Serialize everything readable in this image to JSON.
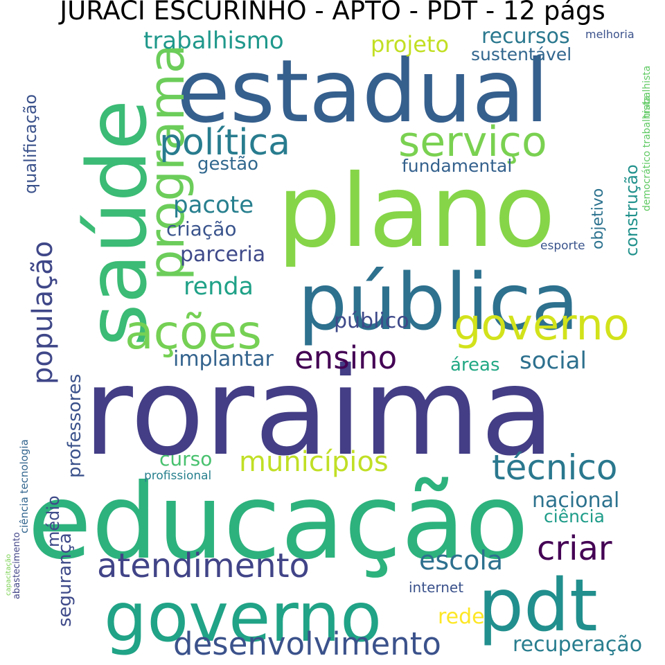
{
  "title": "JURACI ESCURINHO - APTO - PDT - 12 págs",
  "words": [
    {
      "text": "roraima",
      "color": "#433e85"
    },
    {
      "text": "educação",
      "color": "#2db27d"
    },
    {
      "text": "plano",
      "color": "#86d549"
    },
    {
      "text": "estadual",
      "color": "#355f8d"
    },
    {
      "text": "pública",
      "color": "#2d718e"
    },
    {
      "text": "saúde",
      "color": "#3bbb75"
    },
    {
      "text": "governo",
      "color": "#20a386"
    },
    {
      "text": "pdt",
      "color": "#218f8d"
    },
    {
      "text": "governo",
      "color": "#d2e21b"
    },
    {
      "text": "programa",
      "color": "#6ccd5a"
    },
    {
      "text": "ações",
      "color": "#75d054"
    },
    {
      "text": "serviço",
      "color": "#7ad151"
    },
    {
      "text": "política",
      "color": "#287c8e"
    },
    {
      "text": "atendimento",
      "color": "#414487"
    },
    {
      "text": "desenvolvimento",
      "color": "#3b528b"
    },
    {
      "text": "técnico",
      "color": "#2a788e"
    },
    {
      "text": "criar",
      "color": "#440154"
    },
    {
      "text": "municípios",
      "color": "#c0df25"
    },
    {
      "text": "população",
      "color": "#3f4788"
    },
    {
      "text": "ensino",
      "color": "#440154"
    },
    {
      "text": "trabalhismo",
      "color": "#1f988b"
    },
    {
      "text": "recursos",
      "color": "#2a788e"
    },
    {
      "text": "projeto",
      "color": "#c2df23"
    },
    {
      "text": "sustentável",
      "color": "#31668e"
    },
    {
      "text": "pacote",
      "color": "#277f8e"
    },
    {
      "text": "escola",
      "color": "#2d708e"
    },
    {
      "text": "renda",
      "color": "#1fa187"
    },
    {
      "text": "parceria",
      "color": "#3e4989"
    },
    {
      "text": "social",
      "color": "#2d708e"
    },
    {
      "text": "público",
      "color": "#3e4989"
    },
    {
      "text": "implantar",
      "color": "#33638d"
    },
    {
      "text": "criação",
      "color": "#3a548c"
    },
    {
      "text": "gestão",
      "color": "#31688e"
    },
    {
      "text": "fundamental",
      "color": "#34618d"
    },
    {
      "text": "curso",
      "color": "#48c16e"
    },
    {
      "text": "nacional",
      "color": "#2c728e"
    },
    {
      "text": "ciência",
      "color": "#1e9c89"
    },
    {
      "text": "recuperação",
      "color": "#287d8e"
    },
    {
      "text": "qualificação",
      "color": "#3b528b"
    },
    {
      "text": "professores",
      "color": "#3b528b"
    },
    {
      "text": "segurança",
      "color": "#3e4a89"
    },
    {
      "text": "médio",
      "color": "#3e4a89"
    },
    {
      "text": "construção",
      "color": "#21918c"
    },
    {
      "text": "objetivo",
      "color": "#2c728e"
    },
    {
      "text": "áreas",
      "color": "#22a884"
    },
    {
      "text": "rede",
      "color": "#fde725"
    },
    {
      "text": "internet",
      "color": "#3b528b"
    },
    {
      "text": "profissional",
      "color": "#27808e"
    },
    {
      "text": "esporte",
      "color": "#3a548c"
    },
    {
      "text": "melhoria",
      "color": "#3b528b"
    },
    {
      "text": "trabalhista",
      "color": "#5ec962"
    },
    {
      "text": "democrático trabalhista",
      "color": "#5ec962"
    },
    {
      "text": "abastecimento",
      "color": "#414487"
    },
    {
      "text": "ciência tecnologia",
      "color": "#32658e"
    },
    {
      "text": "capacitação",
      "color": "#7ad151"
    }
  ]
}
